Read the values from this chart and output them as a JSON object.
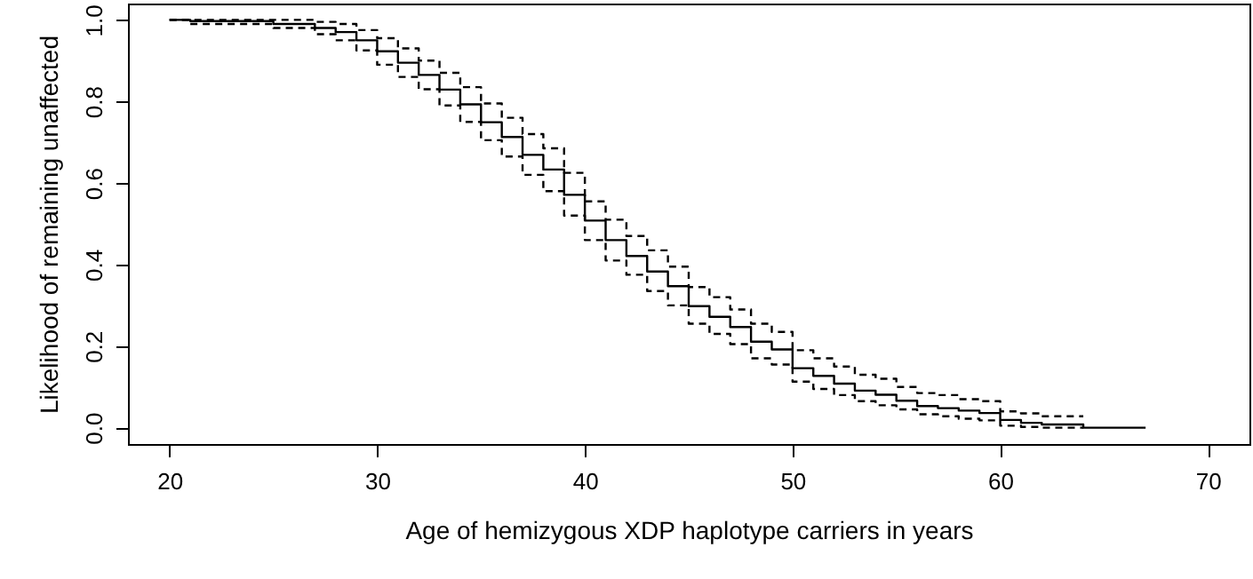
{
  "chart_data": {
    "type": "step",
    "xlabel": "Age of hemizygous XDP haplotype carriers in years",
    "ylabel": "Likelihood of remaining unaffected",
    "x": [
      20,
      21,
      25,
      27,
      28,
      29,
      30,
      31,
      32,
      33,
      34,
      35,
      36,
      37,
      38,
      39,
      40,
      41,
      42,
      43,
      44,
      45,
      46,
      47,
      48,
      49,
      50,
      51,
      52,
      53,
      54,
      55,
      56,
      57,
      58,
      59,
      60,
      61,
      62,
      64,
      67
    ],
    "series": [
      {
        "color": "#000000",
        "line_style": "solid",
        "values": [
          1.0,
          0.997,
          0.99,
          0.98,
          0.97,
          0.95,
          0.923,
          0.895,
          0.865,
          0.829,
          0.793,
          0.749,
          0.713,
          0.669,
          0.633,
          0.571,
          0.508,
          0.46,
          0.421,
          0.383,
          0.347,
          0.298,
          0.272,
          0.247,
          0.211,
          0.192,
          0.146,
          0.127,
          0.108,
          0.091,
          0.081,
          0.066,
          0.053,
          0.048,
          0.042,
          0.036,
          0.019,
          0.012,
          0.008,
          0,
          0
        ]
      },
      {
        "color": "#000000",
        "line_style": "dashed",
        "values": [
          1.0,
          1.0,
          1.0,
          0.995,
          0.99,
          0.975,
          0.955,
          0.93,
          0.9,
          0.87,
          0.835,
          0.795,
          0.76,
          0.72,
          0.685,
          0.625,
          0.555,
          0.51,
          0.47,
          0.435,
          0.395,
          0.345,
          0.32,
          0.29,
          0.255,
          0.235,
          0.19,
          0.17,
          0.15,
          0.13,
          0.12,
          0.1,
          0.085,
          0.08,
          0.07,
          0.065,
          0.04,
          0.035,
          0.028,
          0.028,
          null
        ]
      },
      {
        "color": "#000000",
        "line_style": "dashed",
        "values": [
          1.0,
          0.99,
          0.98,
          0.965,
          0.95,
          0.925,
          0.89,
          0.86,
          0.83,
          0.79,
          0.75,
          0.705,
          0.665,
          0.62,
          0.58,
          0.52,
          0.46,
          0.41,
          0.375,
          0.335,
          0.3,
          0.255,
          0.23,
          0.205,
          0.17,
          0.155,
          0.113,
          0.095,
          0.08,
          0.065,
          0.055,
          0.045,
          0.033,
          0.028,
          0.022,
          0.018,
          0.005,
          0.002,
          0,
          0,
          null
        ]
      }
    ],
    "xlim": [
      18,
      72
    ],
    "ylim": [
      -0.04,
      1.04
    ],
    "xticks": [
      20,
      30,
      40,
      50,
      60,
      70
    ],
    "yticks": [
      {
        "value": 0,
        "label": "0.0"
      },
      {
        "value": 0.2,
        "label": "0.2"
      },
      {
        "value": 0.4,
        "label": "0.4"
      },
      {
        "value": 0.6,
        "label": "0.6"
      },
      {
        "value": 0.8,
        "label": "0.8"
      },
      {
        "value": 1,
        "label": "1.0"
      }
    ]
  }
}
